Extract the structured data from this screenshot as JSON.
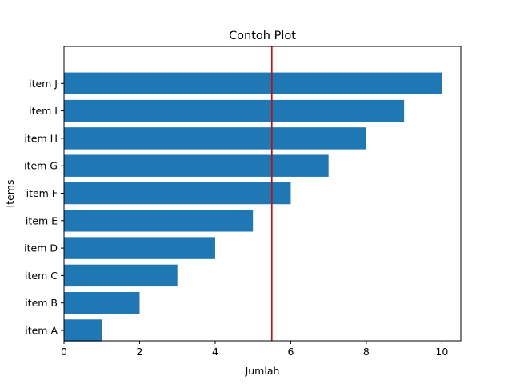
{
  "chart_data": {
    "type": "bar",
    "orientation": "horizontal",
    "title": "Contoh Plot",
    "xlabel": "Jumlah",
    "ylabel": "Items",
    "categories": [
      "item A",
      "item B",
      "item C",
      "item D",
      "item E",
      "item F",
      "item G",
      "item H",
      "item I",
      "item J"
    ],
    "values": [
      1,
      2,
      3,
      4,
      5,
      6,
      7,
      8,
      9,
      10
    ],
    "xlim": [
      0,
      10.5
    ],
    "xticks": [
      0,
      2,
      4,
      6,
      8,
      10
    ],
    "bar_color": "#1f77b4",
    "reference_line": {
      "orientation": "vertical",
      "x": 5.5,
      "color": "#e00000"
    },
    "grid": false,
    "legend": "none"
  }
}
